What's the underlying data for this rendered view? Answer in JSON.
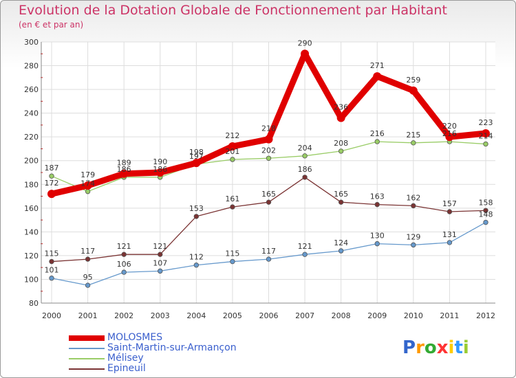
{
  "title": "Evolution de la Dotation Globale de Fonctionnement par Habitant",
  "subtitle": "(en € et par an)",
  "logo_text": "Proxiti",
  "chart_data": {
    "type": "line",
    "title": "Evolution de la Dotation Globale de Fonctionnement par Habitant",
    "subtitle": "(en € et par an)",
    "xlabel": "",
    "ylabel": "",
    "ylim": [
      80,
      300
    ],
    "yticks": [
      80,
      100,
      120,
      140,
      160,
      180,
      200,
      220,
      240,
      260,
      280,
      300
    ],
    "categories": [
      "2000",
      "2001",
      "2002",
      "2003",
      "2004",
      "2005",
      "2006",
      "2007",
      "2008",
      "2009",
      "2010",
      "2011",
      "2012"
    ],
    "grid": true,
    "legend_position": "bottom-left",
    "series": [
      {
        "name": "MOLOSMES",
        "color": "#e00000",
        "values": [
          172,
          179,
          189,
          190,
          198,
          212,
          218,
          290,
          236,
          271,
          259,
          220,
          223
        ]
      },
      {
        "name": "Saint-Martin-sur-Armançon",
        "color": "#6699cc",
        "values": [
          101,
          95,
          106,
          107,
          112,
          115,
          117,
          121,
          124,
          130,
          129,
          131,
          148
        ]
      },
      {
        "name": "Mélisey",
        "color": "#99cc66",
        "values": [
          187,
          174,
          186,
          186,
          197,
          201,
          202,
          204,
          208,
          216,
          215,
          216,
          214
        ]
      },
      {
        "name": "Epineuil",
        "color": "#7a3333",
        "values": [
          115,
          117,
          121,
          121,
          153,
          161,
          165,
          186,
          165,
          163,
          162,
          157,
          158
        ]
      }
    ]
  }
}
